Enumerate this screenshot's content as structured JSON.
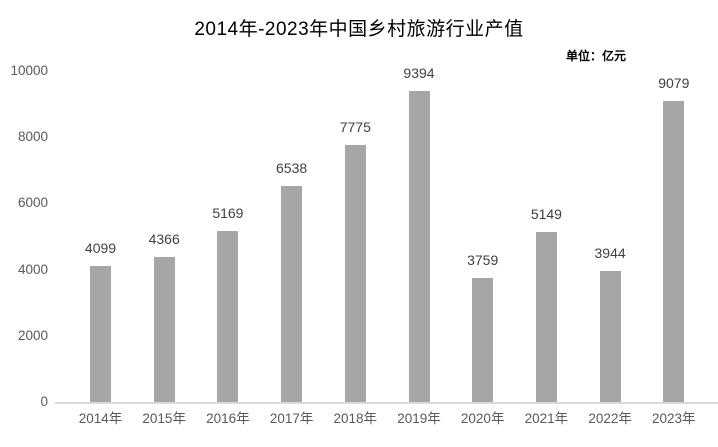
{
  "chart_data": {
    "type": "bar",
    "title": "2014年-2023年中国乡村旅游行业产值",
    "unit_label": "单位：亿元",
    "categories": [
      "2014年",
      "2015年",
      "2016年",
      "2017年",
      "2018年",
      "2019年",
      "2020年",
      "2021年",
      "2022年",
      "2023年"
    ],
    "values": [
      4099,
      4366,
      5169,
      6538,
      7775,
      9394,
      3759,
      5149,
      3944,
      9079
    ],
    "ylabel": "",
    "xlabel": "",
    "ylim": [
      0,
      10000
    ],
    "yticks": [
      0,
      2000,
      4000,
      6000,
      8000,
      10000
    ],
    "grid": false,
    "legend": "none",
    "data_labels": true,
    "colors": {
      "bar": "#a6a6a6",
      "axis_line": "#d9d9d9",
      "tick_label": "#595959",
      "data_label": "#404040",
      "title": "#000000"
    }
  }
}
